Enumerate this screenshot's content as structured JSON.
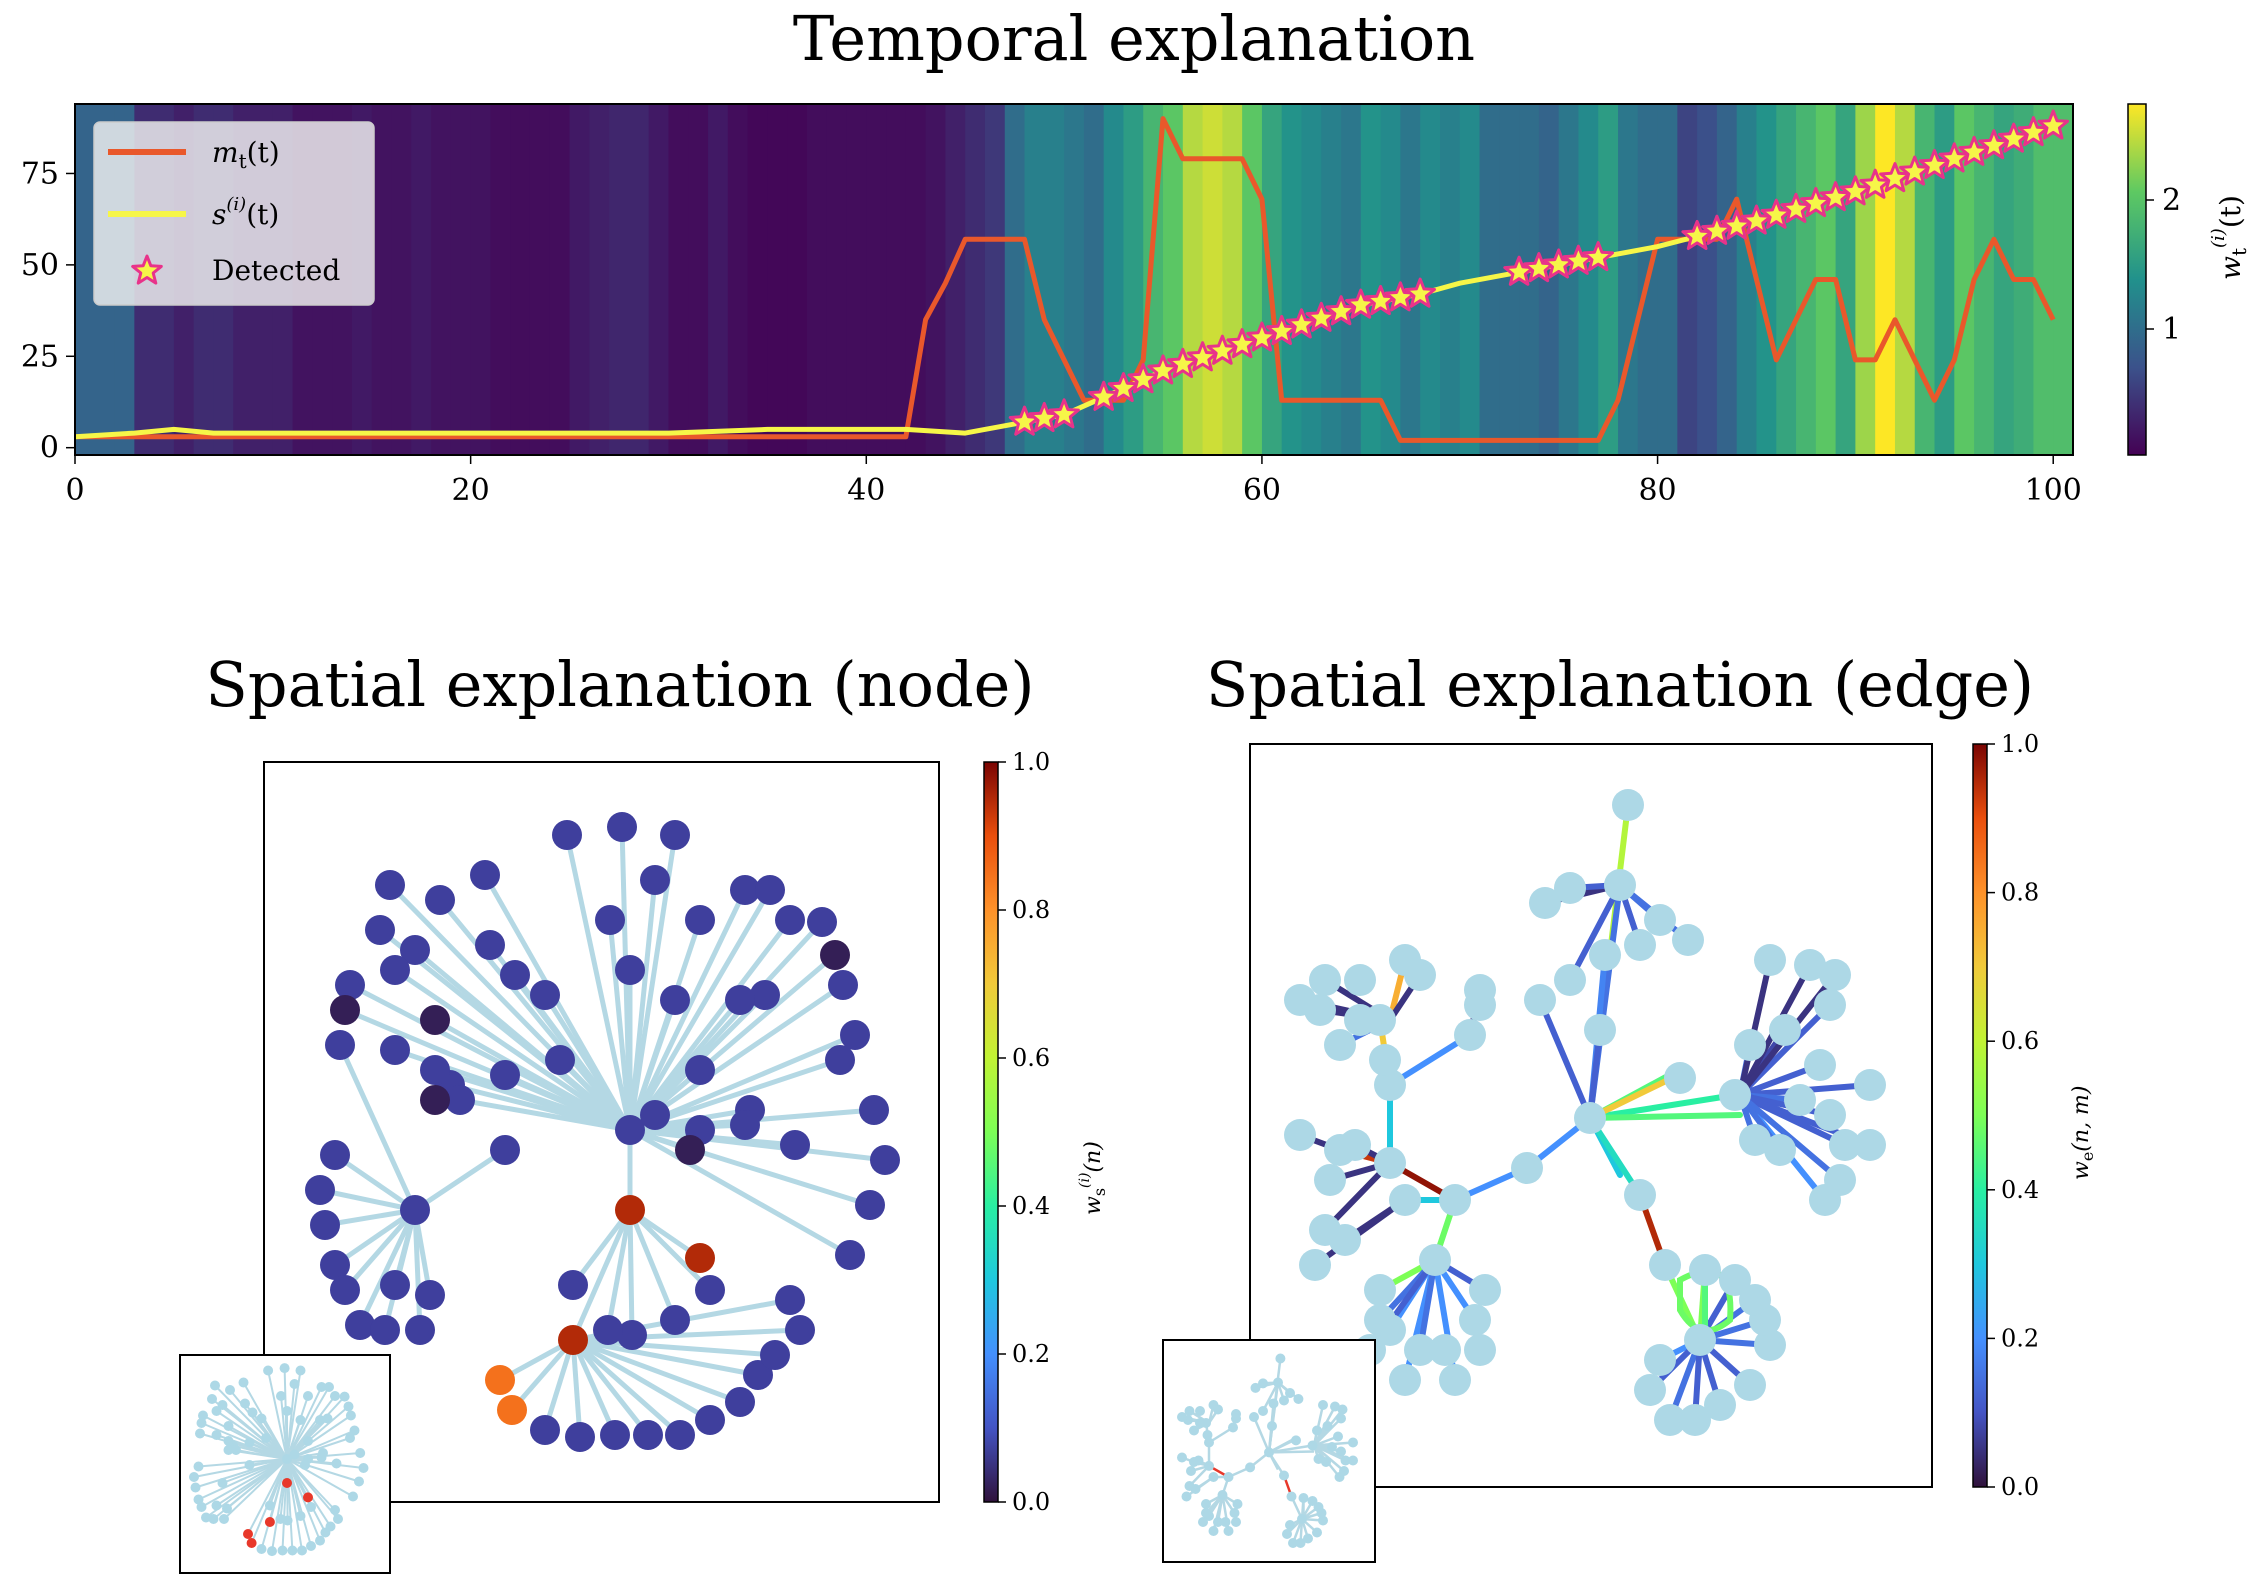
{
  "titles": {
    "temporal": "Temporal explanation",
    "node": "Spatial explanation (node)",
    "edge": "Spatial explanation (edge)"
  },
  "chart_data": [
    {
      "type": "line",
      "title": "Temporal explanation",
      "xlim": [
        0,
        101
      ],
      "ylim": [
        -2,
        94
      ],
      "x_ticks": [
        0,
        20,
        40,
        60,
        80,
        100
      ],
      "y_ticks": [
        0,
        25,
        50,
        75
      ],
      "legend": {
        "placement": "top-left",
        "entries": [
          "m_t(t)",
          "s^(i)(t)",
          "Detected"
        ]
      },
      "colorbar": {
        "label": "w_t^(i)(t)",
        "ticks": [
          1,
          2
        ],
        "range": [
          0.05,
          2.7
        ],
        "colormap": "viridis"
      },
      "background_weights": [
        0.9,
        0.9,
        0.9,
        0.4,
        0.4,
        0.3,
        0.4,
        0.4,
        0.3,
        0.3,
        0.3,
        0.2,
        0.2,
        0.2,
        0.25,
        0.2,
        0.2,
        0.25,
        0.2,
        0.2,
        0.2,
        0.15,
        0.15,
        0.15,
        0.15,
        0.25,
        0.3,
        0.35,
        0.35,
        0.25,
        0.15,
        0.15,
        0.25,
        0.15,
        0.1,
        0.1,
        0.1,
        0.15,
        0.15,
        0.15,
        0.15,
        0.15,
        0.15,
        0.2,
        0.3,
        0.4,
        0.5,
        1.0,
        1.2,
        1.2,
        1.1,
        1.0,
        1.3,
        1.5,
        1.8,
        2.0,
        2.4,
        2.5,
        2.4,
        2.0,
        1.6,
        1.4,
        1.3,
        1.2,
        1.1,
        1.4,
        1.3,
        1.1,
        1.3,
        1.2,
        1.3,
        1.0,
        1.0,
        1.0,
        0.9,
        1.1,
        1.3,
        1.5,
        1.1,
        1.0,
        1.0,
        0.6,
        0.7,
        0.9,
        1.2,
        1.4,
        1.6,
        1.8,
        2.0,
        1.6,
        2.3,
        2.7,
        2.4,
        1.8,
        1.5,
        2.0,
        1.8,
        1.6,
        1.7,
        1.9,
        1.9
      ],
      "series": [
        {
          "name": "m_t(t)",
          "color": "#e9582b",
          "x": [
            0,
            42,
            43,
            44,
            45,
            46,
            47,
            48,
            49,
            50,
            51,
            52,
            53,
            54,
            55,
            56,
            57,
            58,
            59,
            60,
            61,
            62,
            63,
            64,
            65,
            66,
            67,
            68,
            69,
            70,
            71,
            72,
            73,
            74,
            75,
            76,
            77,
            78,
            79,
            80,
            81,
            82,
            83,
            84,
            85,
            86,
            87,
            88,
            89,
            90,
            91,
            92,
            93,
            94,
            95,
            96,
            97,
            98,
            99,
            100
          ],
          "y": [
            3,
            3,
            35,
            45,
            57,
            57,
            57,
            57,
            35,
            24,
            13,
            13,
            13,
            24,
            90,
            79,
            79,
            79,
            79,
            68,
            13,
            13,
            13,
            13,
            13,
            13,
            2,
            2,
            2,
            2,
            2,
            2,
            2,
            2,
            2,
            2,
            2,
            13,
            35,
            57,
            57,
            57,
            57,
            68,
            46,
            24,
            35,
            46,
            46,
            24,
            24,
            35,
            24,
            13,
            24,
            46,
            57,
            46,
            46,
            35
          ]
        },
        {
          "name": "s^(i)(t)",
          "color": "#f6f648",
          "x": [
            0,
            3,
            5,
            7,
            10,
            15,
            20,
            25,
            30,
            35,
            40,
            42,
            45,
            48,
            50,
            55,
            60,
            65,
            68,
            70,
            75,
            80,
            85,
            90,
            95,
            100
          ],
          "y": [
            3,
            4,
            5,
            4,
            4,
            4,
            4,
            4,
            4,
            5,
            5,
            5,
            4,
            7,
            9,
            21,
            30,
            39,
            42,
            45,
            50,
            55,
            62,
            70,
            79,
            88
          ]
        }
      ],
      "detected_x": [
        48,
        49,
        50,
        52,
        53,
        54,
        55,
        56,
        57,
        58,
        59,
        60,
        61,
        62,
        63,
        64,
        65,
        66,
        67,
        68,
        73,
        74,
        75,
        76,
        77,
        82,
        83,
        84,
        85,
        86,
        87,
        88,
        89,
        90,
        91,
        92,
        93,
        94,
        95,
        96,
        97,
        98,
        99,
        100
      ]
    },
    {
      "type": "scatter",
      "title": "Spatial explanation (node)",
      "description_type": "graph",
      "colorbar": {
        "label": "w_s^(i)(n)",
        "ticks": [
          "0.0",
          "0.2",
          "0.4",
          "0.6",
          "0.8",
          "1.0"
        ],
        "range": [
          0,
          1
        ],
        "colormap": "turbo"
      },
      "highlighted_node_weights": [
        0.95,
        0.95,
        0.95,
        0.85,
        0.85
      ],
      "dark_node_weights": [
        0.02,
        0.02,
        0.02,
        0.02,
        0.02
      ],
      "default_node_weight": 0.06
    },
    {
      "type": "scatter",
      "title": "Spatial explanation (edge)",
      "description_type": "graph",
      "colorbar": {
        "label": "w_e(n,m)",
        "ticks": [
          "0.0",
          "0.2",
          "0.4",
          "0.6",
          "0.8",
          "1.0"
        ],
        "range": [
          0,
          1
        ],
        "colormap": "turbo"
      },
      "max_edge_weight": 1.0
    }
  ],
  "labels": {
    "legend_m": "m",
    "legend_m_sub": "t",
    "legend_m_arg": "(t)",
    "legend_s": "s",
    "legend_s_sup": "(i)",
    "legend_s_arg": "(t)",
    "legend_det": "Detected",
    "cb_top_label": "w",
    "cb_top_sub": "t",
    "cb_top_sup": "(i)",
    "cb_top_arg": "(t)",
    "cb_node_label": "w",
    "cb_node_sub": "s",
    "cb_node_sup": "(i)",
    "cb_node_arg": "(n)",
    "cb_edge_label": "w",
    "cb_edge_sub": "e",
    "cb_edge_arg": "(n, m)"
  },
  "colors": {
    "node_default": "#3f3f9d",
    "node_light": "#add8e6",
    "edge_light": "#b4d8e4",
    "detected_fill": "#f6f648",
    "detected_edge": "#e8338a"
  }
}
